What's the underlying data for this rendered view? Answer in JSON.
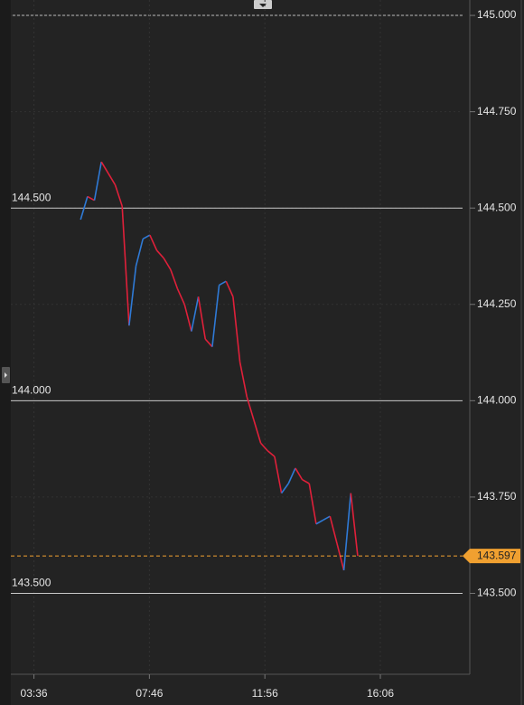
{
  "chart_data": {
    "type": "line",
    "x": [
      317,
      332,
      347,
      362,
      377,
      392,
      407,
      422,
      437,
      452,
      467,
      482,
      497,
      512,
      527,
      542,
      557,
      572,
      587,
      602,
      617,
      632,
      647,
      662,
      677,
      692,
      707,
      722,
      737,
      752,
      767,
      782,
      797,
      812,
      827,
      842,
      857,
      872,
      887,
      902,
      917
    ],
    "series": [
      {
        "up_color": "#2f7ad6",
        "down_color": "#e0203a",
        "values": [
          144.47,
          144.53,
          144.52,
          144.62,
          144.59,
          144.56,
          144.505,
          144.195,
          144.35,
          144.42,
          144.43,
          144.39,
          144.37,
          144.34,
          144.29,
          144.25,
          144.18,
          144.27,
          144.16,
          144.14,
          144.3,
          144.31,
          144.27,
          144.1,
          144.01,
          143.95,
          143.89,
          143.87,
          143.855,
          143.76,
          143.785,
          143.825,
          143.795,
          143.785,
          143.68,
          143.69,
          143.7,
          143.63,
          143.56,
          143.76,
          143.597
        ]
      }
    ],
    "xlim": [
      166,
      1144
    ],
    "xticks": [
      {
        "value": 216,
        "label": "03:36"
      },
      {
        "value": 466,
        "label": "07:46"
      },
      {
        "value": 716,
        "label": "11:56"
      },
      {
        "value": 966,
        "label": "16:06"
      }
    ],
    "ylim": [
      143.29,
      145.04
    ],
    "yticks": [
      {
        "value": 145,
        "label": "145.000"
      },
      {
        "value": 144.75,
        "label": "144.750"
      },
      {
        "value": 144.5,
        "label": "144.500"
      },
      {
        "value": 144.25,
        "label": "144.250"
      },
      {
        "value": 144,
        "label": "144.000"
      },
      {
        "value": 143.75,
        "label": "143.750"
      },
      {
        "value": 143.5,
        "label": "143.500"
      }
    ],
    "levels": [
      {
        "value": 144.5,
        "label": "144.500"
      },
      {
        "value": 144,
        "label": "144.000"
      },
      {
        "value": 143.5,
        "label": "143.500"
      }
    ],
    "last_price": {
      "value": 143.597,
      "label": "143.597",
      "color": "#f0a030"
    },
    "grid": true
  }
}
